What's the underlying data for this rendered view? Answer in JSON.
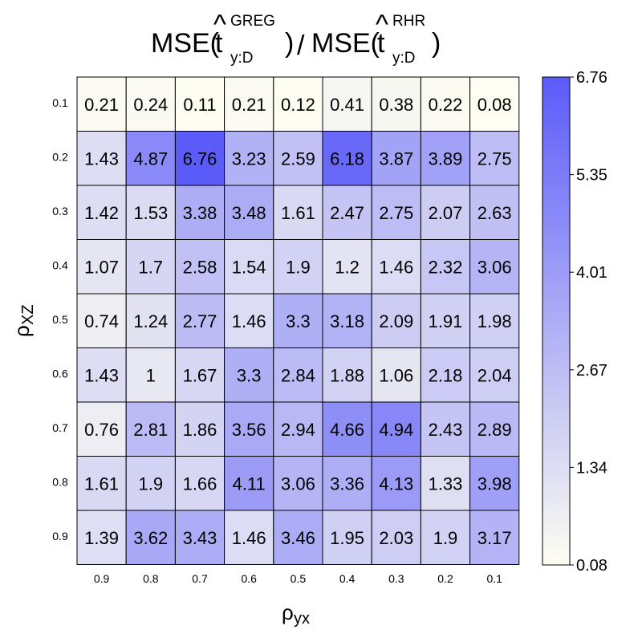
{
  "chart_data": {
    "type": "heatmap",
    "title": {
      "left": {
        "prefix": "MSE(",
        "hat": "^",
        "base": "t",
        "superscript": "GREG",
        "subscript": "y:D",
        "suffix": ")"
      },
      "separator": "/",
      "right": {
        "prefix": "MSE(",
        "hat": "^",
        "base": "t",
        "superscript": "RHR",
        "subscript": "y:D",
        "suffix": ")"
      }
    },
    "xlabel": {
      "symbol": "ρ",
      "subscript": "yx"
    },
    "ylabel": {
      "symbol": "ρ",
      "subscript": "XZ"
    },
    "x_categories": [
      "0.9",
      "0.8",
      "0.7",
      "0.6",
      "0.5",
      "0.4",
      "0.3",
      "0.2",
      "0.1"
    ],
    "y_categories": [
      "0.1",
      "0.2",
      "0.3",
      "0.4",
      "0.5",
      "0.6",
      "0.7",
      "0.8",
      "0.9"
    ],
    "values": [
      [
        "0.21",
        "0.24",
        "0.11",
        "0.21",
        "0.12",
        "0.41",
        "0.38",
        "0.22",
        "0.08"
      ],
      [
        "1.43",
        "4.87",
        "6.76",
        "3.23",
        "2.59",
        "6.18",
        "3.87",
        "3.89",
        "2.75"
      ],
      [
        "1.42",
        "1.53",
        "3.38",
        "3.48",
        "1.61",
        "2.47",
        "2.75",
        "2.07",
        "2.63"
      ],
      [
        "1.07",
        "1.7",
        "2.58",
        "1.54",
        "1.9",
        "1.2",
        "1.46",
        "2.32",
        "3.06"
      ],
      [
        "0.74",
        "1.24",
        "2.77",
        "1.46",
        "3.3",
        "3.18",
        "2.09",
        "1.91",
        "1.98"
      ],
      [
        "1.43",
        "1",
        "1.67",
        "3.3",
        "2.84",
        "1.88",
        "1.06",
        "2.18",
        "2.04"
      ],
      [
        "0.76",
        "2.81",
        "1.86",
        "3.56",
        "2.94",
        "4.66",
        "4.94",
        "2.43",
        "2.89"
      ],
      [
        "1.61",
        "1.9",
        "1.66",
        "4.11",
        "3.06",
        "3.36",
        "4.13",
        "1.33",
        "3.98"
      ],
      [
        "1.39",
        "3.62",
        "3.43",
        "1.46",
        "3.46",
        "1.95",
        "2.03",
        "1.9",
        "3.17"
      ]
    ],
    "colorscale": {
      "min": 0.08,
      "max": 6.76,
      "low_color": "#fefef2",
      "high_color": "#5b5bfa",
      "ticks": [
        "6.76",
        "5.35",
        "4.01",
        "2.67",
        "1.34",
        "0.08"
      ]
    },
    "legend_position": "right",
    "grid": true
  }
}
